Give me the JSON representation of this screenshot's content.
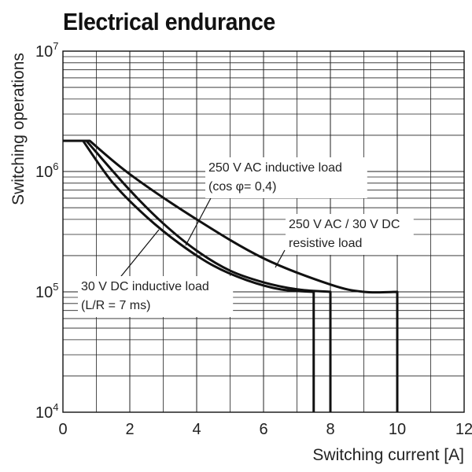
{
  "chart_data": {
    "type": "line",
    "title": "Electrical endurance",
    "xlabel": "Switching current [A]",
    "ylabel": "Switching operations",
    "x_scale": "linear",
    "y_scale": "log",
    "xlim": [
      0,
      12
    ],
    "ylim": [
      10000,
      10000000
    ],
    "x_ticks": [
      "0",
      "2",
      "4",
      "6",
      "8",
      "10",
      "12"
    ],
    "y_ticks": [
      {
        "base": "10",
        "exp": "4"
      },
      {
        "base": "10",
        "exp": "5"
      },
      {
        "base": "10",
        "exp": "6"
      },
      {
        "base": "10",
        "exp": "7"
      }
    ],
    "grid": true,
    "series": [
      {
        "name": "250 V AC / 30 V DC resistive load",
        "color": "#111111",
        "points": [
          [
            0,
            1800000
          ],
          [
            0.8,
            1800000
          ],
          [
            2,
            950000
          ],
          [
            4,
            400000
          ],
          [
            6,
            190000
          ],
          [
            8,
            115000
          ],
          [
            9,
            100000
          ],
          [
            10,
            100000
          ],
          [
            10,
            10000
          ]
        ]
      },
      {
        "name": "250 V AC inductive load (cos φ= 0,4)",
        "color": "#111111",
        "points": [
          [
            0,
            1800000
          ],
          [
            0.7,
            1800000
          ],
          [
            2,
            700000
          ],
          [
            3,
            370000
          ],
          [
            4,
            220000
          ],
          [
            5,
            150000
          ],
          [
            6,
            120000
          ],
          [
            7,
            105000
          ],
          [
            8,
            100000
          ],
          [
            8,
            10000
          ]
        ]
      },
      {
        "name": "30 V DC inductive load (L/R = 7 ms)",
        "color": "#111111",
        "points": [
          [
            0,
            1800000
          ],
          [
            0.6,
            1800000
          ],
          [
            1.5,
            800000
          ],
          [
            2.5,
            420000
          ],
          [
            3.5,
            250000
          ],
          [
            4.5,
            165000
          ],
          [
            5.5,
            125000
          ],
          [
            6.5,
            105000
          ],
          [
            7.5,
            100000
          ],
          [
            7.5,
            10000
          ]
        ]
      }
    ],
    "annotations": [
      {
        "lines": [
          "250 V AC inductive load",
          "(cos φ= 0,4)"
        ],
        "series": 1
      },
      {
        "lines": [
          "250 V AC / 30 V DC",
          "resistive load"
        ],
        "series": 0
      },
      {
        "lines": [
          "30 V DC inductive load",
          "(L/R = 7 ms)"
        ],
        "series": 2
      }
    ]
  }
}
